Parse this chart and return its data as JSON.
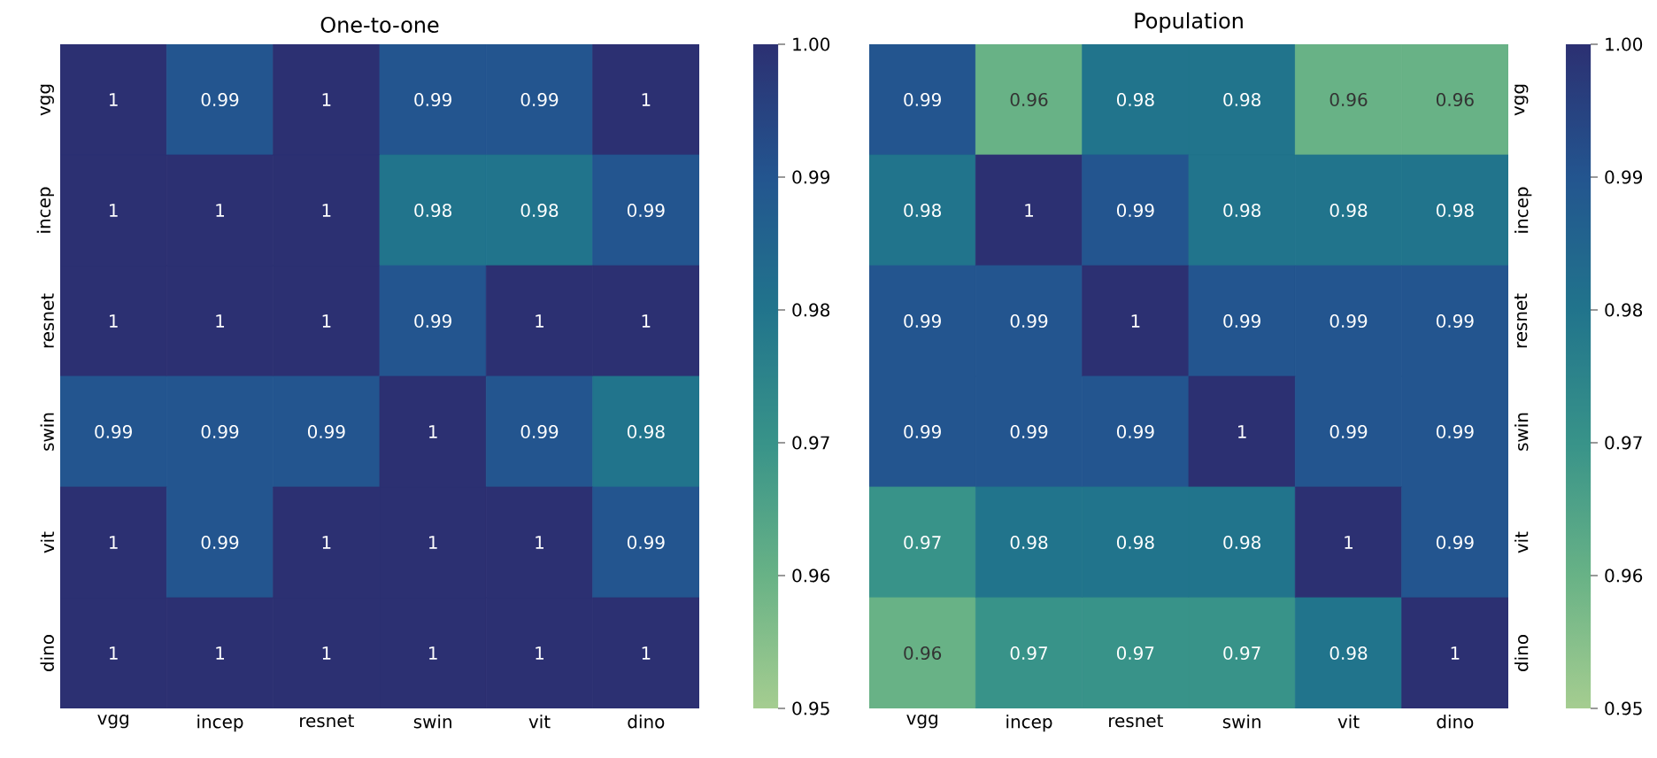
{
  "chart_data": [
    {
      "type": "heatmap",
      "title": "One-to-one",
      "categories": [
        "vgg",
        "incep",
        "resnet",
        "swin",
        "vit",
        "dino"
      ],
      "y_categories": [
        "vgg",
        "incep",
        "resnet",
        "swin",
        "vit",
        "dino"
      ],
      "cells": [
        [
          1,
          0.99,
          1,
          0.99,
          0.99,
          1
        ],
        [
          1,
          1,
          1,
          0.98,
          0.98,
          0.99
        ],
        [
          1,
          1,
          1,
          0.99,
          1,
          1
        ],
        [
          0.99,
          0.99,
          0.99,
          1,
          0.99,
          0.98
        ],
        [
          1,
          0.99,
          1,
          1,
          1,
          0.99
        ],
        [
          1,
          1,
          1,
          1,
          1,
          1
        ]
      ],
      "cell_labels": [
        [
          "1",
          "0.99",
          "1",
          "0.99",
          "0.99",
          "1"
        ],
        [
          "1",
          "1",
          "1",
          "0.98",
          "0.98",
          "0.99"
        ],
        [
          "1",
          "1",
          "1",
          "0.99",
          "1",
          "1"
        ],
        [
          "0.99",
          "0.99",
          "0.99",
          "1",
          "0.99",
          "0.98"
        ],
        [
          "1",
          "0.99",
          "1",
          "1",
          "1",
          "0.99"
        ],
        [
          "1",
          "1",
          "1",
          "1",
          "1",
          "1"
        ]
      ],
      "clim": [
        0.95,
        1
      ],
      "cticks": [
        {
          "value": 0.95,
          "label": "0.95"
        },
        {
          "value": 0.96,
          "label": "0.96"
        },
        {
          "value": 0.97,
          "label": "0.97"
        },
        {
          "value": 0.98,
          "label": "0.98"
        },
        {
          "value": 0.99,
          "label": "0.99"
        },
        {
          "value": 1,
          "label": "1.00"
        }
      ]
    },
    {
      "type": "heatmap",
      "title": "Population",
      "categories": [
        "vgg",
        "incep",
        "resnet",
        "swin",
        "vit",
        "dino"
      ],
      "y_categories": [
        "vgg",
        "incep",
        "resnet",
        "swin",
        "vit",
        "dino"
      ],
      "cells": [
        [
          0.99,
          0.96,
          0.98,
          0.98,
          0.96,
          0.96
        ],
        [
          0.98,
          1,
          0.99,
          0.98,
          0.98,
          0.98
        ],
        [
          0.99,
          0.99,
          1,
          0.99,
          0.99,
          0.99
        ],
        [
          0.99,
          0.99,
          0.99,
          1,
          0.99,
          0.99
        ],
        [
          0.97,
          0.98,
          0.98,
          0.98,
          1,
          0.99
        ],
        [
          0.96,
          0.97,
          0.97,
          0.97,
          0.98,
          1
        ]
      ],
      "cell_labels": [
        [
          "0.99",
          "0.96",
          "0.98",
          "0.98",
          "0.96",
          "0.96"
        ],
        [
          "0.98",
          "1",
          "0.99",
          "0.98",
          "0.98",
          "0.98"
        ],
        [
          "0.99",
          "0.99",
          "1",
          "0.99",
          "0.99",
          "0.99"
        ],
        [
          "0.99",
          "0.99",
          "0.99",
          "1",
          "0.99",
          "0.99"
        ],
        [
          "0.97",
          "0.98",
          "0.98",
          "0.98",
          "1",
          "0.99"
        ],
        [
          "0.96",
          "0.97",
          "0.97",
          "0.97",
          "0.98",
          "1"
        ]
      ],
      "clim": [
        0.95,
        1
      ],
      "cticks": [
        {
          "value": 0.95,
          "label": "0.95"
        },
        {
          "value": 0.96,
          "label": "0.96"
        },
        {
          "value": 0.97,
          "label": "0.97"
        },
        {
          "value": 0.98,
          "label": "0.98"
        },
        {
          "value": 0.99,
          "label": "0.99"
        },
        {
          "value": 1,
          "label": "1.00"
        }
      ]
    }
  ]
}
